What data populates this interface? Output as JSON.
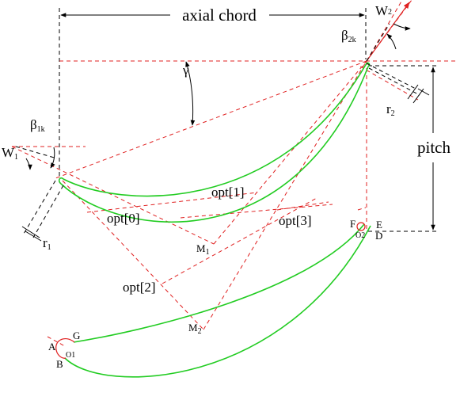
{
  "labels": {
    "axial_chord": "axial chord",
    "pitch": "pitch",
    "gamma": "γ",
    "beta1": "β",
    "beta1_sub": "1k",
    "beta2": "β",
    "beta2_sub": "2k",
    "w1": "W",
    "w1_sub": "1",
    "w2": "W",
    "w2_sub": "2",
    "r1": "r",
    "r1_sub": "1",
    "r2": "r",
    "r2_sub": "2",
    "opt0": "opt[0]",
    "opt1": "opt[1]",
    "opt2": "opt[2]",
    "opt3": "opt[3]",
    "m1": "M",
    "m1_sub": "1",
    "m2": "M",
    "m2_sub": "2",
    "a": "A",
    "b": "B",
    "g": "G",
    "o1": "O1",
    "d": "D",
    "e": "E",
    "f": "F",
    "o2": "O2"
  },
  "colors": {
    "profile": "#22cc22",
    "construction": "#e02020",
    "dimension": "#000000"
  }
}
